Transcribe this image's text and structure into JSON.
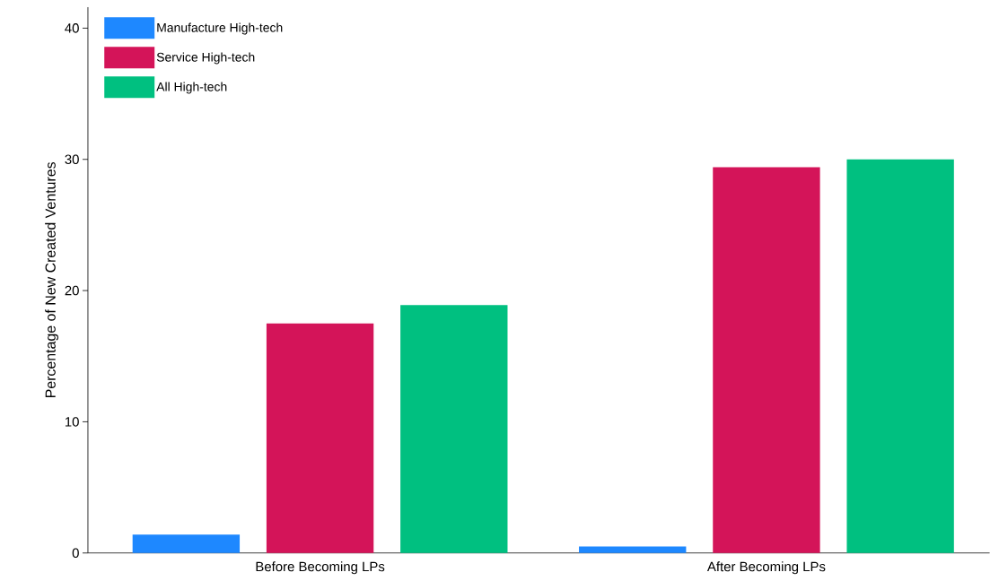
{
  "chart_data": {
    "type": "bar",
    "ylabel": "Percentage of New Created Ventures",
    "categories": [
      "Before Becoming LPs",
      "After Becoming LPs"
    ],
    "series": [
      {
        "name": "Manufacture High-tech",
        "color": "#1e88ff",
        "values": [
          1.4,
          0.5
        ]
      },
      {
        "name": "Service High-tech",
        "color": "#d41459",
        "values": [
          17.5,
          29.4
        ]
      },
      {
        "name": "All High-tech",
        "color": "#00c080",
        "values": [
          18.9,
          30.0
        ]
      }
    ],
    "ylim": [
      0,
      41.6
    ],
    "yticks": [
      0,
      10,
      20,
      30,
      40
    ],
    "grid": false,
    "legend": "top left"
  }
}
